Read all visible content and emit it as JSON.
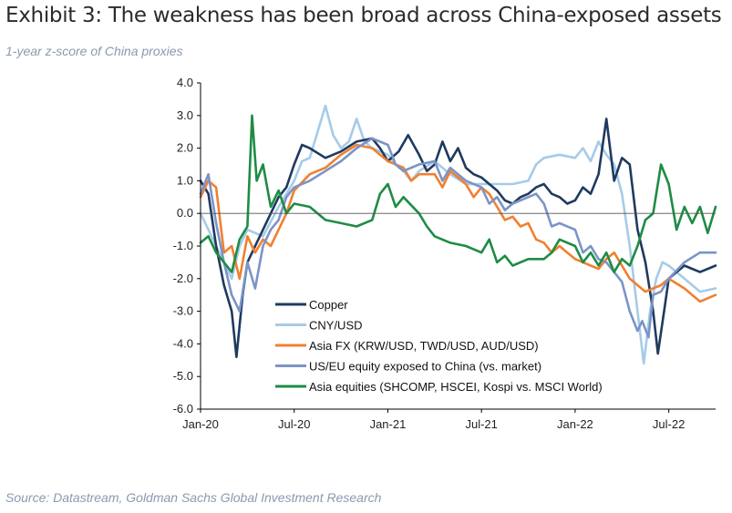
{
  "title": "Exhibit 3: The weakness has been broad across China-exposed assets",
  "subtitle": "1-year z-score of China proxies",
  "source": "Source: Datastream, Goldman Sachs Global Investment Research",
  "chart_data": {
    "type": "line",
    "title": "Exhibit 3: The weakness has been broad across China-exposed assets",
    "ylabel": "1-year z-score of China proxies",
    "xlabel": "",
    "ylim": [
      -6.0,
      4.0
    ],
    "xlim": [
      0,
      33
    ],
    "x_unit": "months since Jan-20",
    "y_ticks": [
      "4.0",
      "3.0",
      "2.0",
      "1.0",
      "0.0",
      "-1.0",
      "-2.0",
      "-3.0",
      "-4.0",
      "-5.0",
      "-6.0"
    ],
    "y_tick_values": [
      4,
      3,
      2,
      1,
      0,
      -1,
      -2,
      -3,
      -4,
      -5,
      -6
    ],
    "x_ticks": [
      "Jan-20",
      "Jul-20",
      "Jan-21",
      "Jul-21",
      "Jan-22",
      "Jul-22"
    ],
    "x_tick_values": [
      0,
      6,
      12,
      18,
      24,
      30
    ],
    "legend_position": "bottom-left inside plot",
    "series": [
      {
        "name": "Copper",
        "color": "#1f3a5f",
        "points": [
          [
            0,
            1.0
          ],
          [
            0.5,
            0.6
          ],
          [
            1,
            -1.0
          ],
          [
            1.5,
            -2.2
          ],
          [
            2,
            -3.0
          ],
          [
            2.3,
            -4.4
          ],
          [
            2.7,
            -2.5
          ],
          [
            3,
            -1.5
          ],
          [
            4,
            -0.5
          ],
          [
            5,
            0.5
          ],
          [
            5.5,
            0.8
          ],
          [
            6,
            1.5
          ],
          [
            6.5,
            2.1
          ],
          [
            7,
            2.0
          ],
          [
            8,
            1.7
          ],
          [
            9,
            1.9
          ],
          [
            10,
            2.2
          ],
          [
            11,
            2.3
          ],
          [
            11.5,
            2.0
          ],
          [
            12,
            1.6
          ],
          [
            12.7,
            1.9
          ],
          [
            13.3,
            2.4
          ],
          [
            14,
            1.8
          ],
          [
            14.5,
            1.3
          ],
          [
            15,
            1.5
          ],
          [
            15.5,
            2.2
          ],
          [
            16,
            1.6
          ],
          [
            16.5,
            2.0
          ],
          [
            17,
            1.4
          ],
          [
            17.5,
            1.2
          ],
          [
            18,
            1.1
          ],
          [
            18.5,
            0.9
          ],
          [
            19,
            0.7
          ],
          [
            19.5,
            0.4
          ],
          [
            20,
            0.3
          ],
          [
            20.5,
            0.5
          ],
          [
            21,
            0.6
          ],
          [
            21.5,
            0.8
          ],
          [
            22,
            0.9
          ],
          [
            22.5,
            0.6
          ],
          [
            23,
            0.5
          ],
          [
            23.5,
            0.3
          ],
          [
            24,
            0.4
          ],
          [
            24.5,
            0.8
          ],
          [
            25,
            0.6
          ],
          [
            25.5,
            1.2
          ],
          [
            26,
            2.9
          ],
          [
            26.5,
            1.0
          ],
          [
            27,
            1.7
          ],
          [
            27.5,
            1.5
          ],
          [
            28,
            -0.5
          ],
          [
            28.5,
            -1.5
          ],
          [
            29,
            -3.0
          ],
          [
            29.3,
            -4.3
          ],
          [
            29.7,
            -3.0
          ],
          [
            30,
            -2.0
          ],
          [
            31,
            -1.6
          ],
          [
            32,
            -1.8
          ],
          [
            33,
            -1.6
          ]
        ]
      },
      {
        "name": "CNY/USD",
        "color": "#a6cbe8",
        "points": [
          [
            0,
            0.0
          ],
          [
            0.5,
            -0.5
          ],
          [
            1,
            -1.0
          ],
          [
            1.5,
            -1.5
          ],
          [
            2,
            -2.0
          ],
          [
            2.5,
            -1.0
          ],
          [
            3,
            -0.5
          ],
          [
            4,
            -0.7
          ],
          [
            5,
            0.2
          ],
          [
            6,
            1.0
          ],
          [
            6.5,
            1.6
          ],
          [
            7,
            1.7
          ],
          [
            7.5,
            2.5
          ],
          [
            8,
            3.3
          ],
          [
            8.5,
            2.4
          ],
          [
            9,
            2.0
          ],
          [
            9.5,
            2.2
          ],
          [
            10,
            2.9
          ],
          [
            10.5,
            2.2
          ],
          [
            11,
            2.0
          ],
          [
            11.5,
            1.9
          ],
          [
            12,
            1.8
          ],
          [
            12.5,
            1.5
          ],
          [
            13,
            1.3
          ],
          [
            13.5,
            1.0
          ],
          [
            14,
            1.3
          ],
          [
            15,
            1.6
          ],
          [
            16,
            1.2
          ],
          [
            17,
            0.9
          ],
          [
            18,
            0.9
          ],
          [
            19,
            0.9
          ],
          [
            20,
            0.9
          ],
          [
            21,
            1.0
          ],
          [
            21.5,
            1.5
          ],
          [
            22,
            1.7
          ],
          [
            23,
            1.8
          ],
          [
            24,
            1.7
          ],
          [
            24.5,
            2.0
          ],
          [
            25,
            1.6
          ],
          [
            25.5,
            2.2
          ],
          [
            26,
            1.8
          ],
          [
            26.5,
            1.5
          ],
          [
            27,
            0.6
          ],
          [
            27.5,
            -1.0
          ],
          [
            28,
            -3.0
          ],
          [
            28.4,
            -4.6
          ],
          [
            28.8,
            -3.0
          ],
          [
            29.2,
            -2.0
          ],
          [
            29.6,
            -1.5
          ],
          [
            30,
            -1.6
          ],
          [
            31,
            -2.0
          ],
          [
            32,
            -2.4
          ],
          [
            33,
            -2.3
          ]
        ]
      },
      {
        "name": "Asia FX (KRW/USD, TWD/USD, AUD/USD)",
        "color": "#f08030",
        "points": [
          [
            0,
            0.5
          ],
          [
            0.5,
            1.0
          ],
          [
            1,
            0.8
          ],
          [
            1.5,
            -1.2
          ],
          [
            2,
            -1.0
          ],
          [
            2.5,
            -2.0
          ],
          [
            3,
            -0.7
          ],
          [
            3.5,
            -1.2
          ],
          [
            4,
            -0.8
          ],
          [
            4.5,
            -1.0
          ],
          [
            5,
            -0.5
          ],
          [
            5.5,
            0.0
          ],
          [
            6,
            0.7
          ],
          [
            7,
            1.2
          ],
          [
            8,
            1.4
          ],
          [
            9,
            1.8
          ],
          [
            10,
            2.1
          ],
          [
            11,
            2.0
          ],
          [
            12,
            1.6
          ],
          [
            13,
            1.4
          ],
          [
            13.5,
            1.0
          ],
          [
            14,
            1.2
          ],
          [
            15,
            1.2
          ],
          [
            15.5,
            0.8
          ],
          [
            16,
            1.3
          ],
          [
            16.5,
            1.1
          ],
          [
            17,
            0.9
          ],
          [
            17.5,
            0.5
          ],
          [
            18,
            0.8
          ],
          [
            18.5,
            0.6
          ],
          [
            19,
            0.2
          ],
          [
            19.5,
            -0.2
          ],
          [
            20,
            -0.1
          ],
          [
            20.5,
            -0.4
          ],
          [
            21,
            -0.3
          ],
          [
            21.5,
            -0.8
          ],
          [
            22,
            -0.9
          ],
          [
            22.5,
            -1.2
          ],
          [
            23,
            -1.0
          ],
          [
            23.5,
            -1.2
          ],
          [
            24,
            -1.4
          ],
          [
            25,
            -1.6
          ],
          [
            25.5,
            -1.7
          ],
          [
            26,
            -1.4
          ],
          [
            26.5,
            -1.2
          ],
          [
            27,
            -1.6
          ],
          [
            27.5,
            -2.0
          ],
          [
            28,
            -2.2
          ],
          [
            28.5,
            -2.4
          ],
          [
            29,
            -2.3
          ],
          [
            29.5,
            -2.2
          ],
          [
            30,
            -2.0
          ],
          [
            31,
            -2.3
          ],
          [
            32,
            -2.7
          ],
          [
            33,
            -2.5
          ]
        ]
      },
      {
        "name": "US/EU equity exposed to China (vs. market)",
        "color": "#7b94c7",
        "points": [
          [
            0,
            0.6
          ],
          [
            0.5,
            1.2
          ],
          [
            1,
            -0.3
          ],
          [
            1.5,
            -1.5
          ],
          [
            2,
            -2.5
          ],
          [
            2.5,
            -3.0
          ],
          [
            3,
            -1.5
          ],
          [
            3.5,
            -2.3
          ],
          [
            4,
            -1.0
          ],
          [
            4.5,
            -0.5
          ],
          [
            5,
            -0.2
          ],
          [
            5.5,
            0.5
          ],
          [
            6,
            0.8
          ],
          [
            7,
            1.0
          ],
          [
            8,
            1.3
          ],
          [
            9,
            1.6
          ],
          [
            10,
            2.0
          ],
          [
            11,
            2.3
          ],
          [
            12,
            2.1
          ],
          [
            12.5,
            1.5
          ],
          [
            13,
            1.3
          ],
          [
            14,
            1.5
          ],
          [
            15,
            1.6
          ],
          [
            15.5,
            1.0
          ],
          [
            16,
            1.4
          ],
          [
            17,
            1.0
          ],
          [
            18,
            0.8
          ],
          [
            18.5,
            0.3
          ],
          [
            19,
            0.5
          ],
          [
            19.5,
            0.1
          ],
          [
            20,
            0.3
          ],
          [
            21,
            0.5
          ],
          [
            21.5,
            0.6
          ],
          [
            22,
            0.3
          ],
          [
            22.5,
            -0.4
          ],
          [
            23,
            -0.3
          ],
          [
            24,
            -0.5
          ],
          [
            24.5,
            -1.2
          ],
          [
            25,
            -1.0
          ],
          [
            25.5,
            -1.4
          ],
          [
            26,
            -1.5
          ],
          [
            26.5,
            -1.8
          ],
          [
            27,
            -2.1
          ],
          [
            27.5,
            -3.0
          ],
          [
            28,
            -3.6
          ],
          [
            28.3,
            -3.3
          ],
          [
            28.7,
            -3.8
          ],
          [
            29,
            -2.5
          ],
          [
            29.5,
            -2.4
          ],
          [
            30,
            -2.0
          ],
          [
            31,
            -1.5
          ],
          [
            32,
            -1.2
          ],
          [
            33,
            -1.2
          ]
        ]
      },
      {
        "name": "Asia equities (SHCOMP, HSCEI, Kospi vs. MSCI World)",
        "color": "#1e8c45",
        "points": [
          [
            0,
            -0.9
          ],
          [
            0.5,
            -0.7
          ],
          [
            1,
            -1.2
          ],
          [
            1.5,
            -1.5
          ],
          [
            2,
            -1.8
          ],
          [
            2.5,
            -0.8
          ],
          [
            3,
            -0.4
          ],
          [
            3.3,
            3.0
          ],
          [
            3.6,
            1.0
          ],
          [
            4,
            1.5
          ],
          [
            4.5,
            0.2
          ],
          [
            5,
            0.7
          ],
          [
            5.5,
            0.0
          ],
          [
            6,
            0.3
          ],
          [
            7,
            0.2
          ],
          [
            8,
            -0.2
          ],
          [
            9,
            -0.3
          ],
          [
            10,
            -0.4
          ],
          [
            10.5,
            -0.3
          ],
          [
            11,
            -0.2
          ],
          [
            11.5,
            0.6
          ],
          [
            12,
            0.9
          ],
          [
            12.5,
            0.2
          ],
          [
            13,
            0.5
          ],
          [
            14,
            0.0
          ],
          [
            14.5,
            -0.4
          ],
          [
            15,
            -0.7
          ],
          [
            16,
            -0.9
          ],
          [
            17,
            -1.0
          ],
          [
            17.5,
            -1.1
          ],
          [
            18,
            -1.2
          ],
          [
            18.5,
            -0.8
          ],
          [
            19,
            -1.5
          ],
          [
            19.5,
            -1.3
          ],
          [
            20,
            -1.6
          ],
          [
            21,
            -1.4
          ],
          [
            22,
            -1.4
          ],
          [
            22.5,
            -1.2
          ],
          [
            23,
            -0.8
          ],
          [
            24,
            -1.0
          ],
          [
            24.5,
            -1.5
          ],
          [
            25,
            -1.2
          ],
          [
            25.5,
            -1.6
          ],
          [
            26,
            -1.2
          ],
          [
            26.5,
            -1.8
          ],
          [
            27,
            -1.4
          ],
          [
            27.5,
            -1.6
          ],
          [
            28,
            -1.0
          ],
          [
            28.5,
            -0.2
          ],
          [
            29,
            0.0
          ],
          [
            29.5,
            1.5
          ],
          [
            30,
            0.9
          ],
          [
            30.5,
            -0.5
          ],
          [
            31,
            0.2
          ],
          [
            31.5,
            -0.3
          ],
          [
            32,
            0.2
          ],
          [
            32.5,
            -0.6
          ],
          [
            33,
            0.2
          ]
        ]
      }
    ]
  }
}
